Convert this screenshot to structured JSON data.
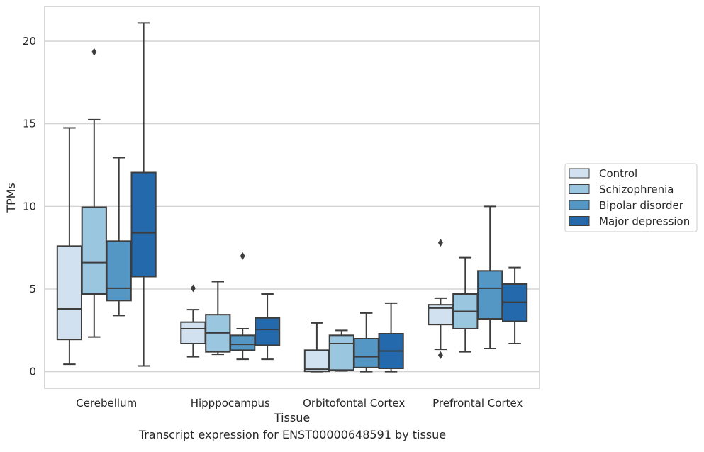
{
  "chart_data": {
    "type": "box",
    "title": "",
    "xlabel": "Tissue",
    "ylabel": "TPMs",
    "ylim": [
      -1,
      22.1
    ],
    "yticks": [
      0,
      5,
      10,
      15,
      20
    ],
    "grid": "horizontal",
    "legend_position": "right",
    "categories": [
      "Cerebellum",
      "Hipppocampus",
      "Orbitofontal Cortex",
      "Prefrontal Cortex"
    ],
    "series": [
      {
        "name": "Control",
        "color": "#d1e1f0",
        "boxes": [
          {
            "whislo": 0.45,
            "q1": 1.95,
            "med": 3.8,
            "q3": 7.6,
            "whishi": 14.75,
            "fliers": []
          },
          {
            "whislo": 0.9,
            "q1": 1.7,
            "med": 2.6,
            "q3": 3.0,
            "whishi": 3.75,
            "fliers": [
              5.05
            ]
          },
          {
            "whislo": 0.0,
            "q1": 0.02,
            "med": 0.15,
            "q3": 1.3,
            "whishi": 2.95,
            "fliers": []
          },
          {
            "whislo": 1.35,
            "q1": 2.85,
            "med": 3.85,
            "q3": 4.05,
            "whishi": 4.45,
            "fliers": [
              7.8,
              1.0
            ]
          }
        ]
      },
      {
        "name": "Schizophrenia",
        "color": "#9ac6e0",
        "boxes": [
          {
            "whislo": 2.1,
            "q1": 4.7,
            "med": 6.6,
            "q3": 9.95,
            "whishi": 15.25,
            "fliers": [
              19.35
            ]
          },
          {
            "whislo": 1.05,
            "q1": 1.2,
            "med": 2.35,
            "q3": 3.45,
            "whishi": 5.45,
            "fliers": []
          },
          {
            "whislo": 0.05,
            "q1": 0.1,
            "med": 1.7,
            "q3": 2.2,
            "whishi": 2.5,
            "fliers": []
          },
          {
            "whislo": 1.2,
            "q1": 2.6,
            "med": 3.65,
            "q3": 4.7,
            "whishi": 6.9,
            "fliers": []
          }
        ]
      },
      {
        "name": "Bipolar disorder",
        "color": "#5497c5",
        "boxes": [
          {
            "whislo": 3.4,
            "q1": 4.3,
            "med": 5.05,
            "q3": 7.9,
            "whishi": 12.95,
            "fliers": []
          },
          {
            "whislo": 0.75,
            "q1": 1.3,
            "med": 1.65,
            "q3": 2.2,
            "whishi": 2.6,
            "fliers": [
              7.0
            ]
          },
          {
            "whislo": 0.0,
            "q1": 0.25,
            "med": 0.9,
            "q3": 2.0,
            "whishi": 3.55,
            "fliers": []
          },
          {
            "whislo": 1.4,
            "q1": 3.2,
            "med": 5.05,
            "q3": 6.1,
            "whishi": 10.0,
            "fliers": []
          }
        ]
      },
      {
        "name": "Major depression",
        "color": "#2469ab",
        "boxes": [
          {
            "whislo": 0.35,
            "q1": 5.75,
            "med": 8.4,
            "q3": 12.05,
            "whishi": 21.1,
            "fliers": []
          },
          {
            "whislo": 0.75,
            "q1": 1.6,
            "med": 2.55,
            "q3": 3.25,
            "whishi": 4.7,
            "fliers": []
          },
          {
            "whislo": 0.0,
            "q1": 0.2,
            "med": 1.25,
            "q3": 2.3,
            "whishi": 4.15,
            "fliers": []
          },
          {
            "whislo": 1.7,
            "q1": 3.05,
            "med": 4.2,
            "q3": 5.3,
            "whishi": 6.3,
            "fliers": []
          }
        ]
      }
    ],
    "caption": "Transcript expression for ENST00000648591 by tissue"
  }
}
